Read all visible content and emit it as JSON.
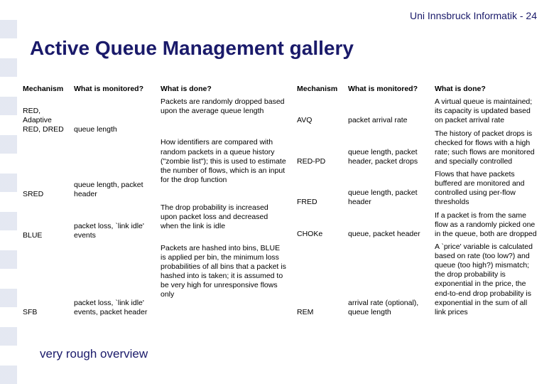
{
  "header": {
    "org": "Uni Innsbruck Informatik",
    "sep": " - ",
    "page": "24"
  },
  "title": "Active Queue Management gallery",
  "footer": "very rough overview",
  "columns": {
    "mech": "Mechanism",
    "mon": "What is monitored?",
    "done": "What is done?"
  },
  "left_table": [
    {
      "mech": "RED, Adaptive RED, DRED",
      "mon": "queue length",
      "done": "Packets are randomly dropped based upon the average queue length"
    },
    {
      "mech": "SRED",
      "mon": "queue length, packet header",
      "done": "How identifiers are compared with random packets in a queue history (\"zombie list\"); this is used to estimate the number of flows, which is an input for the drop function"
    },
    {
      "mech": "BLUE",
      "mon": "packet loss, `link idle' events",
      "done": "The drop probability is increased upon packet loss and decreased when the link is idle"
    },
    {
      "mech": "SFB",
      "mon": "packet loss, `link idle' events, packet header",
      "done": "Packets are hashed into bins, BLUE is applied per bin, the minimum loss probabilities of all bins that a packet is hashed into is taken; it is assumed to be very high for unresponsive flows only"
    }
  ],
  "right_table": [
    {
      "mech": "AVQ",
      "mon": "packet arrival rate",
      "done": "A virtual queue is maintained; its capacity is updated based on packet arrival rate"
    },
    {
      "mech": "RED-PD",
      "mon": "queue length, packet header, packet drops",
      "done": "The history of packet drops is checked for flows with a high rate; such flows are monitored and specially controlled"
    },
    {
      "mech": "FRED",
      "mon": "queue length, packet header",
      "done": "Flows that have packets buffered are monitored and controlled using per-flow thresholds"
    },
    {
      "mech": "CHOKe",
      "mon": "queue, packet header",
      "done": "If a packet is from the same flow as a randomly picked one in the queue, both are dropped"
    },
    {
      "mech": "REM",
      "mon": "arrival rate (optional), queue length",
      "done": "A `price' variable is calculated based on rate (too low?) and queue (too high?) mismatch; the drop probability is exponential in the price, the end-to-end drop probability is exponential in the sum of all link prices"
    }
  ]
}
